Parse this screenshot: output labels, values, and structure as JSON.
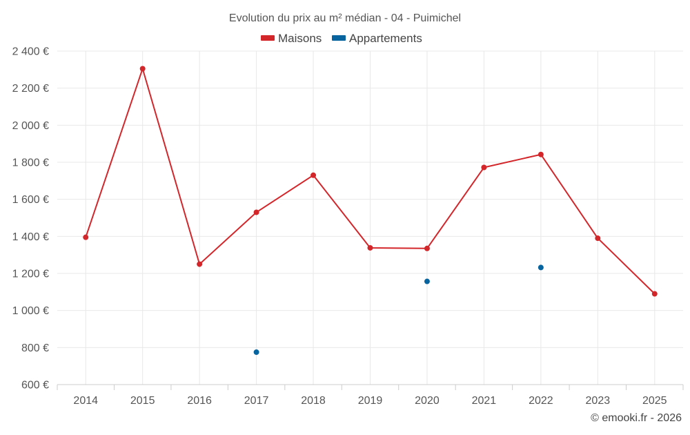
{
  "chart_data": {
    "type": "line",
    "title": "Evolution du prix au m² médian - 04 - Puimichel",
    "categories": [
      "2014",
      "2015",
      "2016",
      "2017",
      "2018",
      "2019",
      "2020",
      "2021",
      "2022",
      "2023",
      "2025"
    ],
    "series": [
      {
        "name": "Maisons",
        "color": "#d3262a",
        "values": [
          1395,
          2305,
          1250,
          1530,
          1730,
          1338,
          1335,
          1772,
          1842,
          1390,
          1090
        ]
      },
      {
        "name": "Appartements",
        "color": "#08649e",
        "values": [
          null,
          null,
          null,
          775,
          null,
          null,
          1157,
          null,
          1232,
          null,
          null
        ]
      }
    ],
    "ylim": [
      600,
      2400
    ],
    "yticks": [
      600,
      800,
      1000,
      1200,
      1400,
      1600,
      1800,
      2000,
      2200,
      2400
    ],
    "ytick_labels": [
      "600 €",
      "800 €",
      "1 000 €",
      "1 200 €",
      "1 400 €",
      "1 600 €",
      "1 800 €",
      "2 000 €",
      "2 200 €",
      "2 400 €"
    ],
    "grid": true,
    "legend_position": "top-center",
    "credit": "© emooki.fr - 2026"
  }
}
